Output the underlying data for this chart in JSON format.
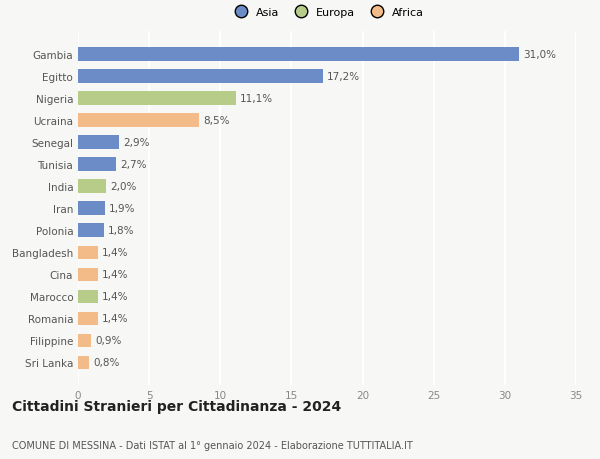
{
  "categories": [
    "Sri Lanka",
    "Filippine",
    "Romania",
    "Marocco",
    "Cina",
    "Bangladesh",
    "Polonia",
    "Iran",
    "India",
    "Tunisia",
    "Senegal",
    "Ucraina",
    "Nigeria",
    "Egitto",
    "Gambia"
  ],
  "values": [
    31.0,
    17.2,
    11.1,
    8.5,
    2.9,
    2.7,
    2.0,
    1.9,
    1.8,
    1.4,
    1.4,
    1.4,
    1.4,
    0.9,
    0.8
  ],
  "labels": [
    "31,0%",
    "17,2%",
    "11,1%",
    "8,5%",
    "2,9%",
    "2,7%",
    "2,0%",
    "1,9%",
    "1,8%",
    "1,4%",
    "1,4%",
    "1,4%",
    "1,4%",
    "0,9%",
    "0,8%"
  ],
  "colors": [
    "#6b8cc7",
    "#6b8cc7",
    "#b8cc8a",
    "#f2bb87",
    "#6b8cc7",
    "#6b8cc7",
    "#b8cc8a",
    "#6b8cc7",
    "#6b8cc7",
    "#f2bb87",
    "#f2bb87",
    "#b8cc8a",
    "#f2bb87",
    "#f2bb87",
    "#f2bb87"
  ],
  "legend_labels": [
    "Asia",
    "Europa",
    "Africa"
  ],
  "legend_colors": [
    "#6b8cc7",
    "#b8cc8a",
    "#f2bb87"
  ],
  "title": "Cittadini Stranieri per Cittadinanza - 2024",
  "subtitle": "COMUNE DI MESSINA - Dati ISTAT al 1° gennaio 2024 - Elaborazione TUTTITALIA.IT",
  "xlim": [
    0,
    35
  ],
  "xticks": [
    0,
    5,
    10,
    15,
    20,
    25,
    30,
    35
  ],
  "background_color": "#f7f7f5",
  "grid_color": "#ffffff",
  "bar_height": 0.62,
  "label_fontsize": 7.5,
  "tick_fontsize": 7.5,
  "title_fontsize": 10,
  "subtitle_fontsize": 7
}
